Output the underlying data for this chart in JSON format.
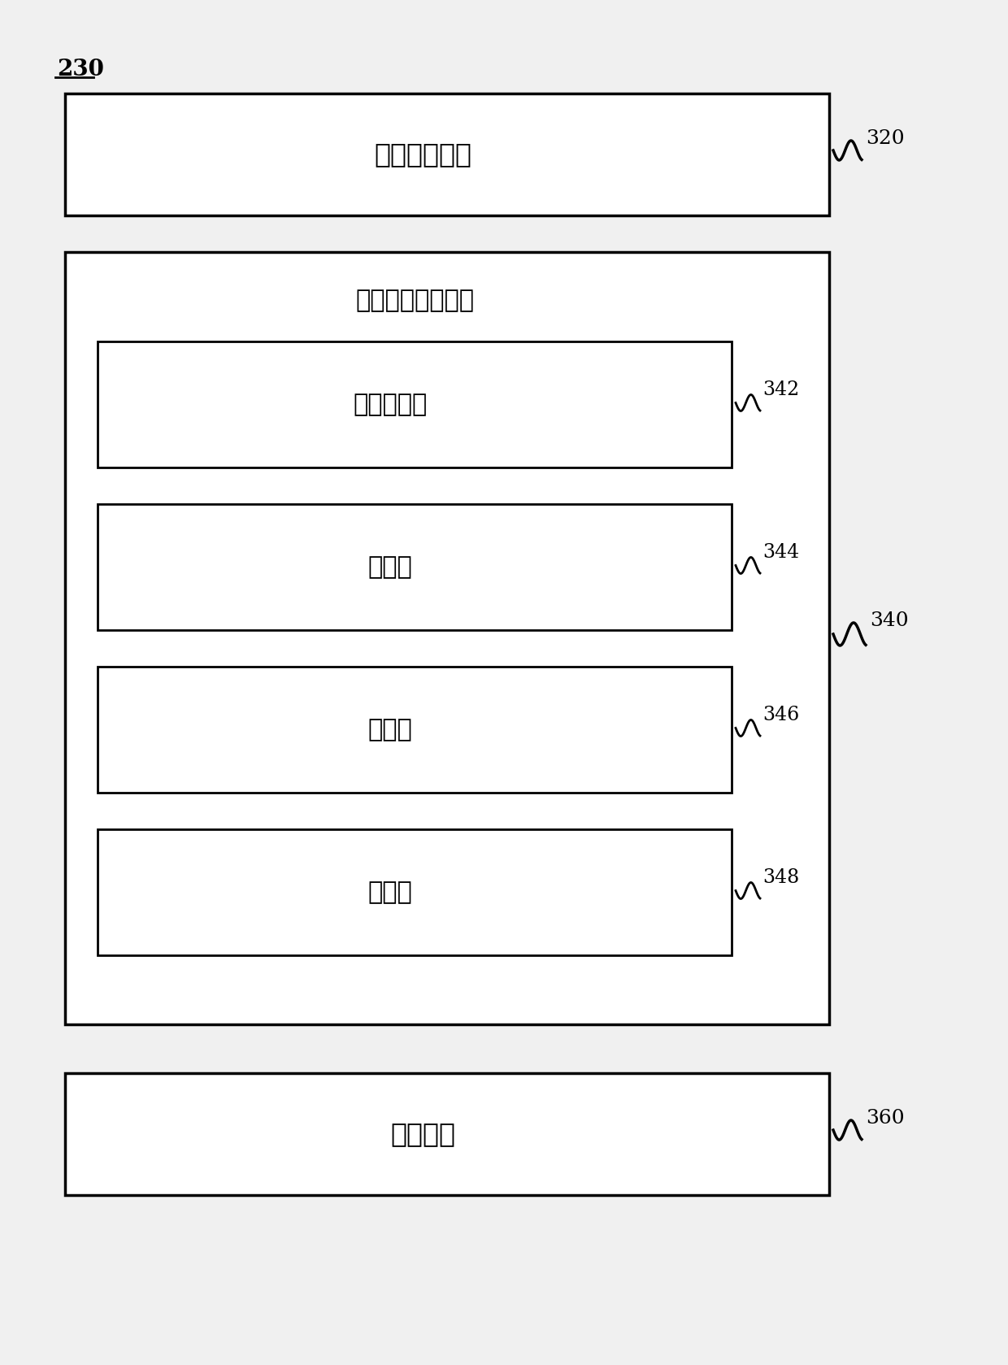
{
  "bg_color": "#f0f0f0",
  "outer_border_color": "#000000",
  "box_face_color": "#ffffff",
  "text_color": "#000000",
  "label_230": "230",
  "label_320": "320",
  "label_340": "340",
  "label_342": "342",
  "label_344": "344",
  "label_346": "346",
  "label_348": "348",
  "label_360": "360",
  "box320_text": "图像重建单元",
  "box340_title": "神经网络训练单元",
  "box342_text": "参数确定块",
  "box344_text": "提取块",
  "box346_text": "计算块",
  "box348_text": "判断块",
  "box360_text": "存储单元",
  "font_size_large": 22,
  "font_size_medium": 18,
  "font_size_label": 16
}
